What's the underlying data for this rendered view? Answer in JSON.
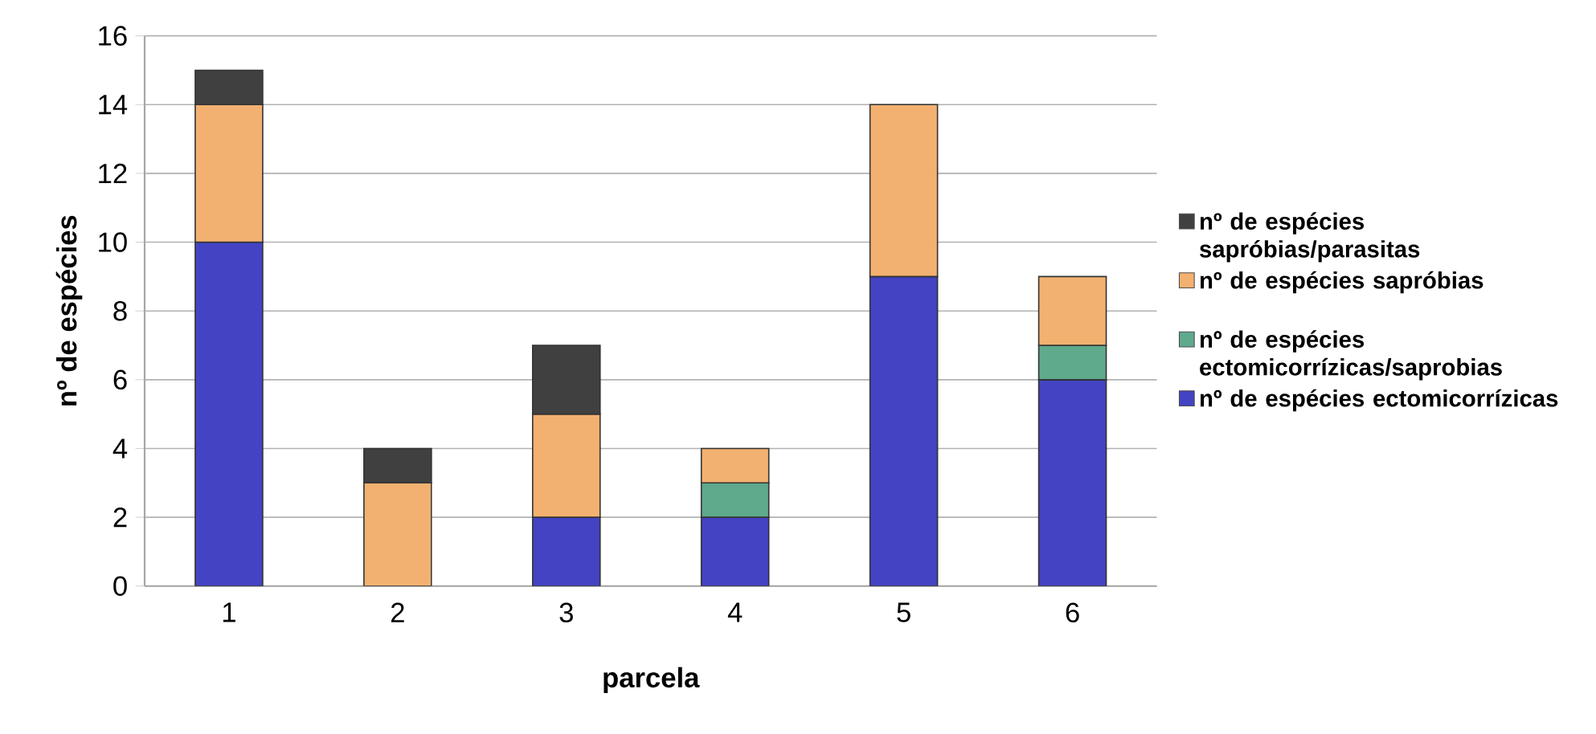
{
  "chart_data": {
    "type": "bar",
    "stacked": true,
    "xlabel": "parcela",
    "ylabel": "nº de espécies",
    "categories": [
      "1",
      "2",
      "3",
      "4",
      "5",
      "6"
    ],
    "series": [
      {
        "name": "nº de espécies ectomicorrízicas",
        "color": "#4343c3",
        "values": [
          10,
          0,
          2,
          2,
          9,
          6
        ]
      },
      {
        "name": "nº de espécies ectomicorrízicas/saprobias",
        "color": "#5fa98c",
        "values": [
          0,
          0,
          0,
          1,
          0,
          1
        ]
      },
      {
        "name": "nº de espécies sapróbias",
        "color": "#f2b170",
        "values": [
          4,
          3,
          3,
          1,
          5,
          2
        ]
      },
      {
        "name": "nº de espécies sapróbias/parasitas",
        "color": "#404040",
        "values": [
          1,
          1,
          2,
          0,
          0,
          0
        ]
      }
    ],
    "ylim": [
      0,
      16
    ],
    "yticks": [
      0,
      2,
      4,
      6,
      8,
      10,
      12,
      14,
      16
    ],
    "grid": "y",
    "legend": "right"
  }
}
